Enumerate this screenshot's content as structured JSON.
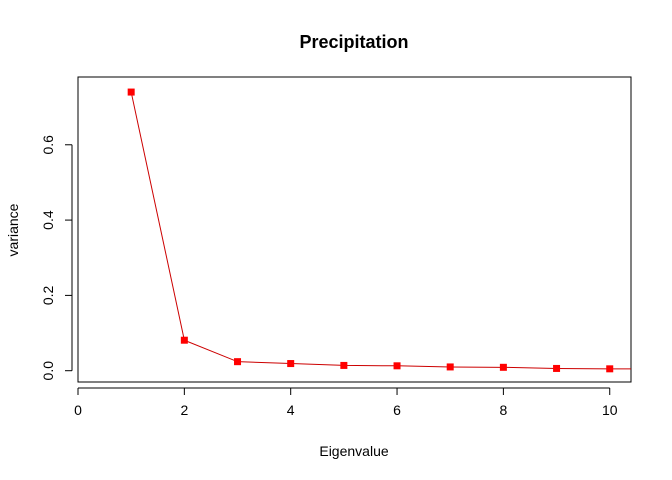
{
  "chart_data": {
    "type": "line",
    "title": "Precipitation",
    "xlabel": "Eigenvalue",
    "ylabel": "variance",
    "xlim": [
      0,
      10.4
    ],
    "ylim": [
      -0.03,
      0.78
    ],
    "x_ticks": [
      "0",
      "2",
      "4",
      "6",
      "8",
      "10"
    ],
    "y_ticks": [
      "0.0",
      "0.2",
      "0.4",
      "0.6"
    ],
    "grid": false,
    "colors": {
      "series": "#ff0000",
      "line": "#cc0000",
      "frame": "#000000"
    },
    "series": [
      {
        "marker": "square",
        "x": [
          1,
          2,
          3,
          4,
          5,
          6,
          7,
          8,
          9,
          10
        ],
        "y": [
          0.74,
          0.081,
          0.024,
          0.019,
          0.014,
          0.013,
          0.01,
          0.009,
          0.006,
          0.005
        ]
      }
    ]
  }
}
